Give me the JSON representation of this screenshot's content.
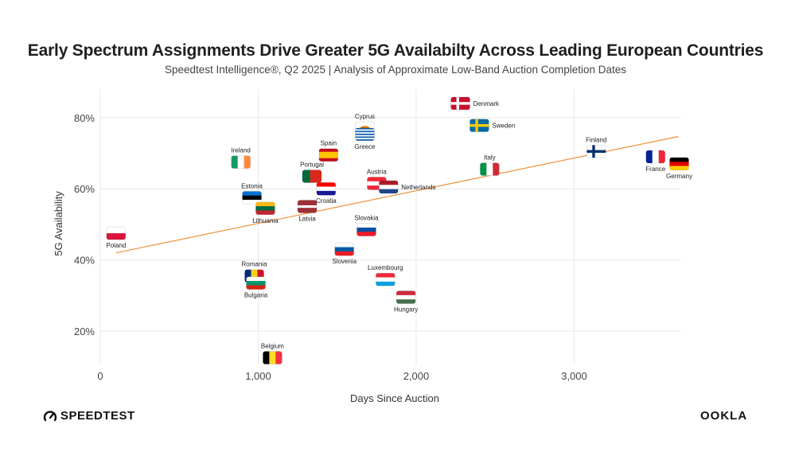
{
  "title": "Early Spectrum Assignments Drive Greater 5G Availabilty Across Leading European Countries",
  "subtitle": "Speedtest Intelligence®, Q2 2025 | Analysis of Approximate Low-Band Auction Completion Dates",
  "brand_left": "SPEEDTEST",
  "brand_right": "OOKLA",
  "chart_data": {
    "type": "scatter",
    "xlabel": "Days Since Auction",
    "ylabel": "5G Availability",
    "xlim": [
      0,
      3700
    ],
    "ylim": [
      10,
      84
    ],
    "xticks": [
      0,
      1000,
      2000,
      3000
    ],
    "xtick_labels": [
      "0",
      "1,000",
      "2,000",
      "3,000"
    ],
    "yticks": [
      20,
      40,
      60,
      80
    ],
    "ytick_labels": [
      "20%",
      "40%",
      "60%",
      "80%"
    ],
    "grid": true,
    "trendline": {
      "x": [
        100,
        3660
      ],
      "y": [
        42,
        74.7
      ],
      "color": "#f0913a"
    },
    "points": [
      {
        "country": "Poland",
        "x": 100,
        "y": 47.5,
        "flag": "poland",
        "label_pos": "below"
      },
      {
        "country": "Ireland",
        "x": 890,
        "y": 67.5,
        "flag": "ireland",
        "label_pos": "above"
      },
      {
        "country": "Estonia",
        "x": 960,
        "y": 57.5,
        "flag": "estonia",
        "label_pos": "above"
      },
      {
        "country": "Lithuania",
        "x": 1045,
        "y": 54.5,
        "flag": "lithuania",
        "label_pos": "below"
      },
      {
        "country": "Romania",
        "x": 975,
        "y": 35.5,
        "flag": "romania",
        "label_pos": "above"
      },
      {
        "country": "Bulgaria",
        "x": 985,
        "y": 33.5,
        "flag": "bulgaria",
        "label_pos": "below"
      },
      {
        "country": "Belgium",
        "x": 1090,
        "y": 12.5,
        "flag": "belgium",
        "label_pos": "above"
      },
      {
        "country": "Latvia",
        "x": 1310,
        "y": 55,
        "flag": "latvia",
        "label_pos": "below"
      },
      {
        "country": "Portugal",
        "x": 1340,
        "y": 63.5,
        "flag": "portugal",
        "label_pos": "above"
      },
      {
        "country": "Spain",
        "x": 1445,
        "y": 69.5,
        "flag": "spain",
        "label_pos": "above"
      },
      {
        "country": "Croatia",
        "x": 1430,
        "y": 60,
        "flag": "croatia",
        "label_pos": "below"
      },
      {
        "country": "Slovenia",
        "x": 1545,
        "y": 43,
        "flag": "slovenia",
        "label_pos": "below"
      },
      {
        "country": "Cyprus",
        "x": 1675,
        "y": 77,
        "flag": "cyprus",
        "label_pos": "above"
      },
      {
        "country": "Greece",
        "x": 1675,
        "y": 75.3,
        "flag": "greece",
        "label_pos": "below"
      },
      {
        "country": "Slovakia",
        "x": 1685,
        "y": 48.5,
        "flag": "slovakia",
        "label_pos": "above"
      },
      {
        "country": "Austria",
        "x": 1750,
        "y": 61.5,
        "flag": "austria",
        "label_pos": "above"
      },
      {
        "country": "Netherlands",
        "x": 1825,
        "y": 60.5,
        "flag": "netherlands",
        "label_pos": "right"
      },
      {
        "country": "Luxembourg",
        "x": 1805,
        "y": 34.5,
        "flag": "luxembourg",
        "label_pos": "above"
      },
      {
        "country": "Hungary",
        "x": 1935,
        "y": 29.5,
        "flag": "hungary",
        "label_pos": "below"
      },
      {
        "country": "Denmark",
        "x": 2280,
        "y": 84,
        "flag": "denmark",
        "label_pos": "right"
      },
      {
        "country": "Sweden",
        "x": 2400,
        "y": 77.8,
        "flag": "sweden",
        "label_pos": "right"
      },
      {
        "country": "Italy",
        "x": 2465,
        "y": 65.5,
        "flag": "italy",
        "label_pos": "above"
      },
      {
        "country": "Finland",
        "x": 3140,
        "y": 70.5,
        "flag": "finland",
        "label_pos": "above"
      },
      {
        "country": "France",
        "x": 3515,
        "y": 69,
        "flag": "france",
        "label_pos": "below"
      },
      {
        "country": "Germany",
        "x": 3665,
        "y": 67,
        "flag": "germany",
        "label_pos": "below"
      }
    ]
  },
  "flags": {
    "poland": {
      "type": "h",
      "colors": [
        "#ffffff",
        "#dc143c"
      ]
    },
    "ireland": {
      "type": "v",
      "colors": [
        "#169b62",
        "#ffffff",
        "#ff883e"
      ]
    },
    "estonia": {
      "type": "h",
      "colors": [
        "#0072ce",
        "#000000",
        "#ffffff"
      ]
    },
    "lithuania": {
      "type": "h",
      "colors": [
        "#fdb913",
        "#006a44",
        "#c1272d"
      ]
    },
    "romania": {
      "type": "v",
      "colors": [
        "#002b7f",
        "#fcd116",
        "#ce1126"
      ]
    },
    "bulgaria": {
      "type": "h",
      "colors": [
        "#ffffff",
        "#00966e",
        "#d62612"
      ]
    },
    "belgium": {
      "type": "v",
      "colors": [
        "#000000",
        "#fdda24",
        "#ef3340"
      ]
    },
    "latvia": {
      "type": "h",
      "colors": [
        "#9e3039",
        "#9e3039",
        "#ffffff",
        "#9e3039",
        "#9e3039"
      ]
    },
    "portugal": {
      "type": "vw",
      "colors": [
        "#046a38",
        "#da291c"
      ],
      "weights": [
        2,
        3
      ]
    },
    "spain": {
      "type": "hw",
      "colors": [
        "#c60b1e",
        "#ffc400",
        "#c60b1e"
      ],
      "weights": [
        1,
        2,
        1
      ]
    },
    "croatia": {
      "type": "h",
      "colors": [
        "#ff0000",
        "#ffffff",
        "#171796"
      ]
    },
    "slovenia": {
      "type": "h",
      "colors": [
        "#ffffff",
        "#005da4",
        "#ed1c24"
      ]
    },
    "cyprus": {
      "type": "solid",
      "colors": [
        "#ffffff"
      ],
      "emblem": "#d57800"
    },
    "greece": {
      "type": "h",
      "colors": [
        "#0d5eaf",
        "#ffffff",
        "#0d5eaf",
        "#ffffff",
        "#0d5eaf",
        "#ffffff",
        "#0d5eaf",
        "#ffffff",
        "#0d5eaf"
      ]
    },
    "slovakia": {
      "type": "h",
      "colors": [
        "#ffffff",
        "#0b4ea2",
        "#ee1c25"
      ]
    },
    "austria": {
      "type": "h",
      "colors": [
        "#ed2939",
        "#ffffff",
        "#ed2939"
      ]
    },
    "netherlands": {
      "type": "h",
      "colors": [
        "#ae1c28",
        "#ffffff",
        "#21468b"
      ]
    },
    "luxembourg": {
      "type": "h",
      "colors": [
        "#ed2939",
        "#ffffff",
        "#00a1de"
      ]
    },
    "hungary": {
      "type": "h",
      "colors": [
        "#cd2a3e",
        "#ffffff",
        "#436f4d"
      ]
    },
    "denmark": {
      "type": "cross",
      "colors": [
        "#c8102e",
        "#ffffff"
      ]
    },
    "sweden": {
      "type": "cross",
      "colors": [
        "#006aa7",
        "#fecc00"
      ]
    },
    "italy": {
      "type": "v",
      "colors": [
        "#009246",
        "#ffffff",
        "#ce2b37"
      ]
    },
    "finland": {
      "type": "cross",
      "colors": [
        "#ffffff",
        "#002f6c"
      ]
    },
    "france": {
      "type": "v",
      "colors": [
        "#002395",
        "#ffffff",
        "#ed2939"
      ]
    },
    "germany": {
      "type": "h",
      "colors": [
        "#000000",
        "#dd0000",
        "#ffce00"
      ]
    }
  }
}
